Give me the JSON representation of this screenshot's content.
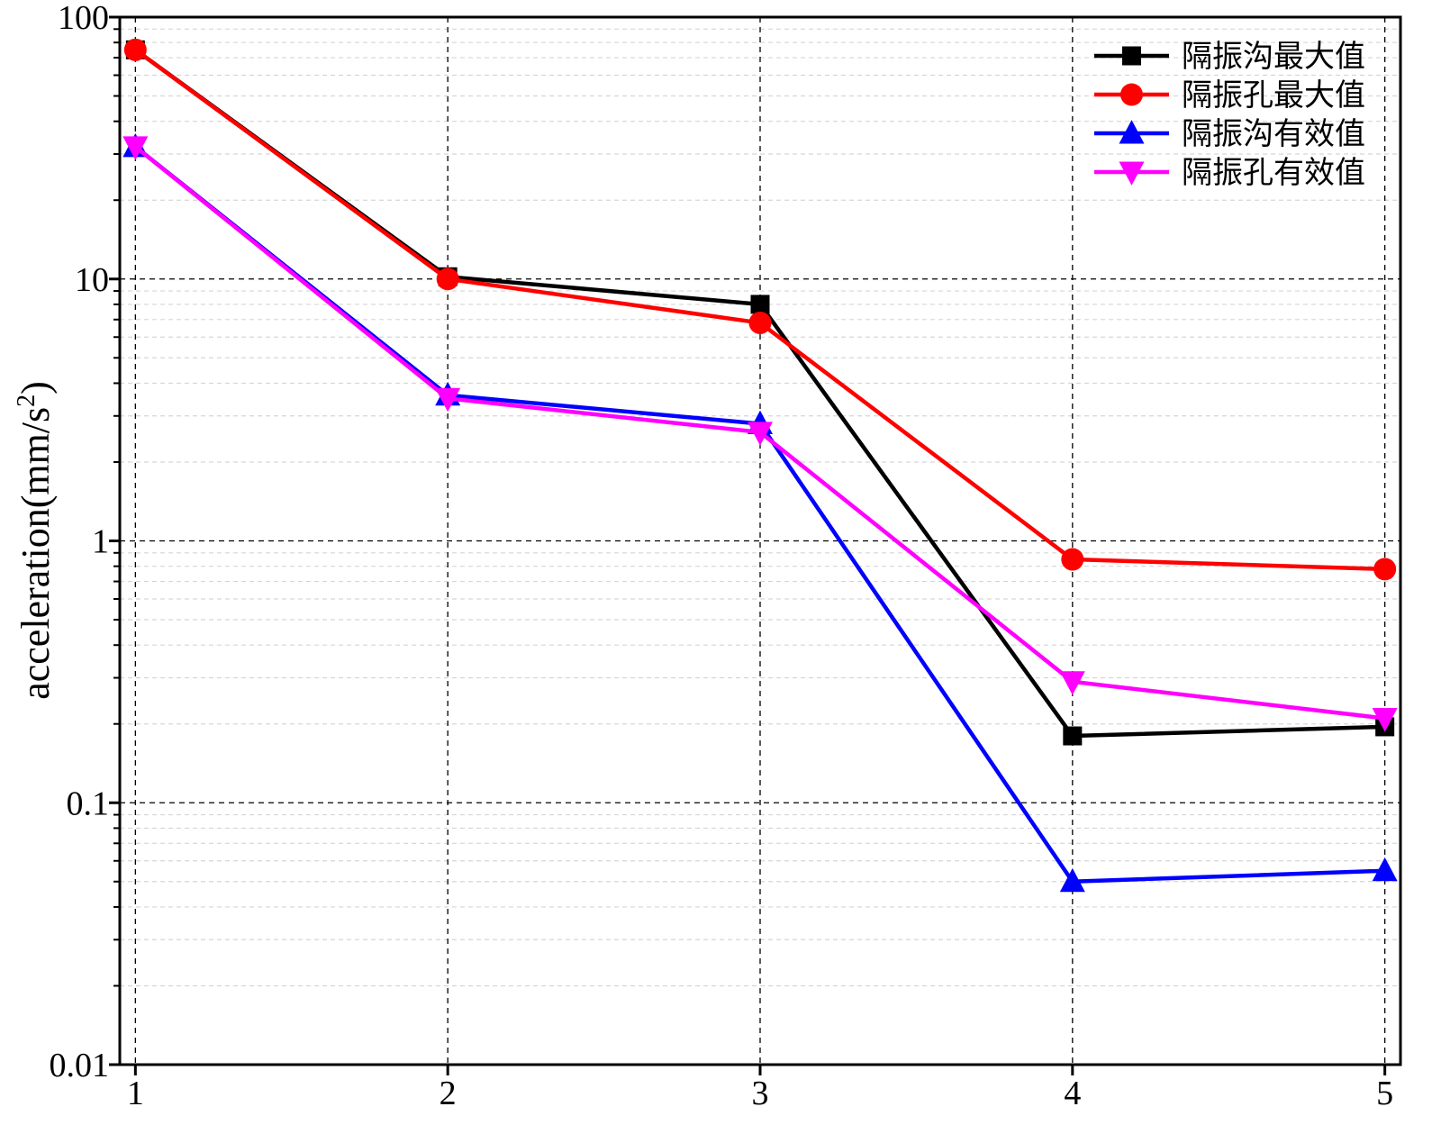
{
  "chart_data": {
    "type": "line",
    "title": "",
    "xlabel": "",
    "ylabel": "acceleration(mm/s",
    "ylabel_superscript": "2",
    "ylabel_close": ")",
    "y_scale": "log",
    "ylim": [
      0.01,
      100
    ],
    "xlim": [
      0.95,
      5.05
    ],
    "x_ticks": [
      1,
      2,
      3,
      4,
      5
    ],
    "x_tick_labels": [
      "1",
      "2",
      "3",
      "4",
      "5"
    ],
    "y_ticks": [
      0.01,
      0.1,
      1,
      10,
      100
    ],
    "y_tick_labels": [
      "0.01",
      "0.1",
      "1",
      "10",
      "100"
    ],
    "grid": true,
    "legend_position": "top-right",
    "x": [
      1,
      2,
      3,
      4,
      5
    ],
    "series": [
      {
        "name": "隔振沟最大值",
        "values": [
          75,
          10.2,
          8,
          0.18,
          0.195
        ],
        "color": "#000000",
        "marker": "square"
      },
      {
        "name": "隔振孔最大值",
        "values": [
          75,
          10,
          6.8,
          0.85,
          0.78
        ],
        "color": "#ff0000",
        "marker": "circle"
      },
      {
        "name": "隔振沟有效值",
        "values": [
          32,
          3.6,
          2.8,
          0.05,
          0.055
        ],
        "color": "#0000ff",
        "marker": "triangle-up"
      },
      {
        "name": "隔振孔有效值",
        "values": [
          32,
          3.5,
          2.6,
          0.29,
          0.21
        ],
        "color": "#ff00ff",
        "marker": "triangle-down"
      }
    ]
  }
}
